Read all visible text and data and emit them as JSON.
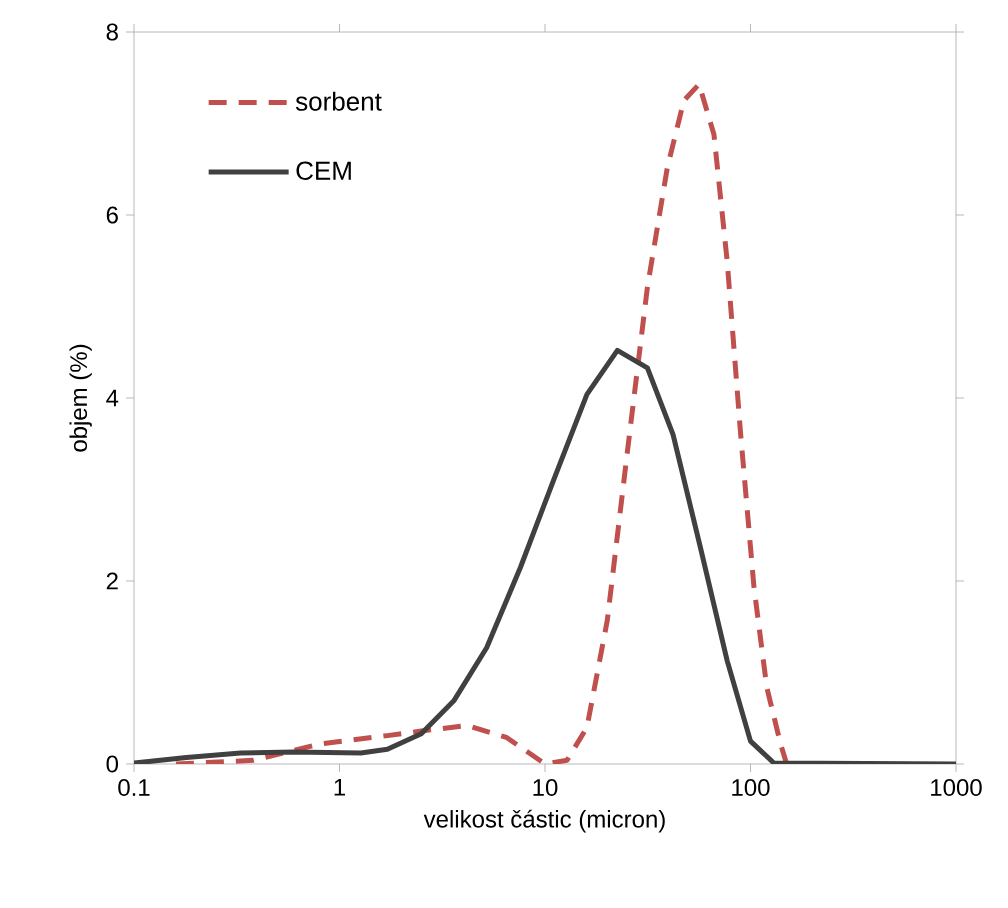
{
  "chart_data": {
    "type": "line",
    "xlabel": "velikost částic (micron)",
    "ylabel": "objem (%)",
    "log": "x",
    "xlim": [
      0.1,
      1000
    ],
    "ylim": [
      0,
      8
    ],
    "xticks": [
      0.1,
      1,
      10,
      100,
      1000
    ],
    "yticks": [
      0,
      2,
      4,
      6,
      8
    ],
    "grid": false,
    "legend": "top left",
    "marker": "none",
    "series": [
      {
        "name": "sorbent",
        "color": "#c0504d",
        "line_style": "dashed",
        "x": [
          0.16,
          0.38,
          0.81,
          1.71,
          2.5,
          4.2,
          6.5,
          10,
          12.8,
          16,
          20.1,
          25.1,
          31.5,
          39.4,
          47.4,
          56.2,
          66.4,
          77,
          89.5,
          104,
          120,
          140,
          150
        ],
        "values": [
          0,
          0.04,
          0.22,
          0.31,
          0.36,
          0.42,
          0.29,
          0,
          0.04,
          0.4,
          1.57,
          3.39,
          5.21,
          6.52,
          7.25,
          7.43,
          6.88,
          5.5,
          3.61,
          1.93,
          0.84,
          0.22,
          0
        ]
      },
      {
        "name": "CEM",
        "color": "#404040",
        "line_style": "solid",
        "x": [
          0.1,
          0.18,
          0.33,
          0.6,
          1.27,
          1.71,
          2.5,
          3.6,
          5.2,
          7.6,
          11,
          16,
          22.5,
          31.5,
          42,
          57,
          77,
          100,
          130,
          1000
        ],
        "values": [
          0.01,
          0.07,
          0.12,
          0.13,
          0.12,
          0.16,
          0.33,
          0.69,
          1.27,
          2.15,
          3.1,
          4.04,
          4.52,
          4.33,
          3.6,
          2.37,
          1.13,
          0.25,
          0.01,
          0
        ]
      }
    ]
  }
}
